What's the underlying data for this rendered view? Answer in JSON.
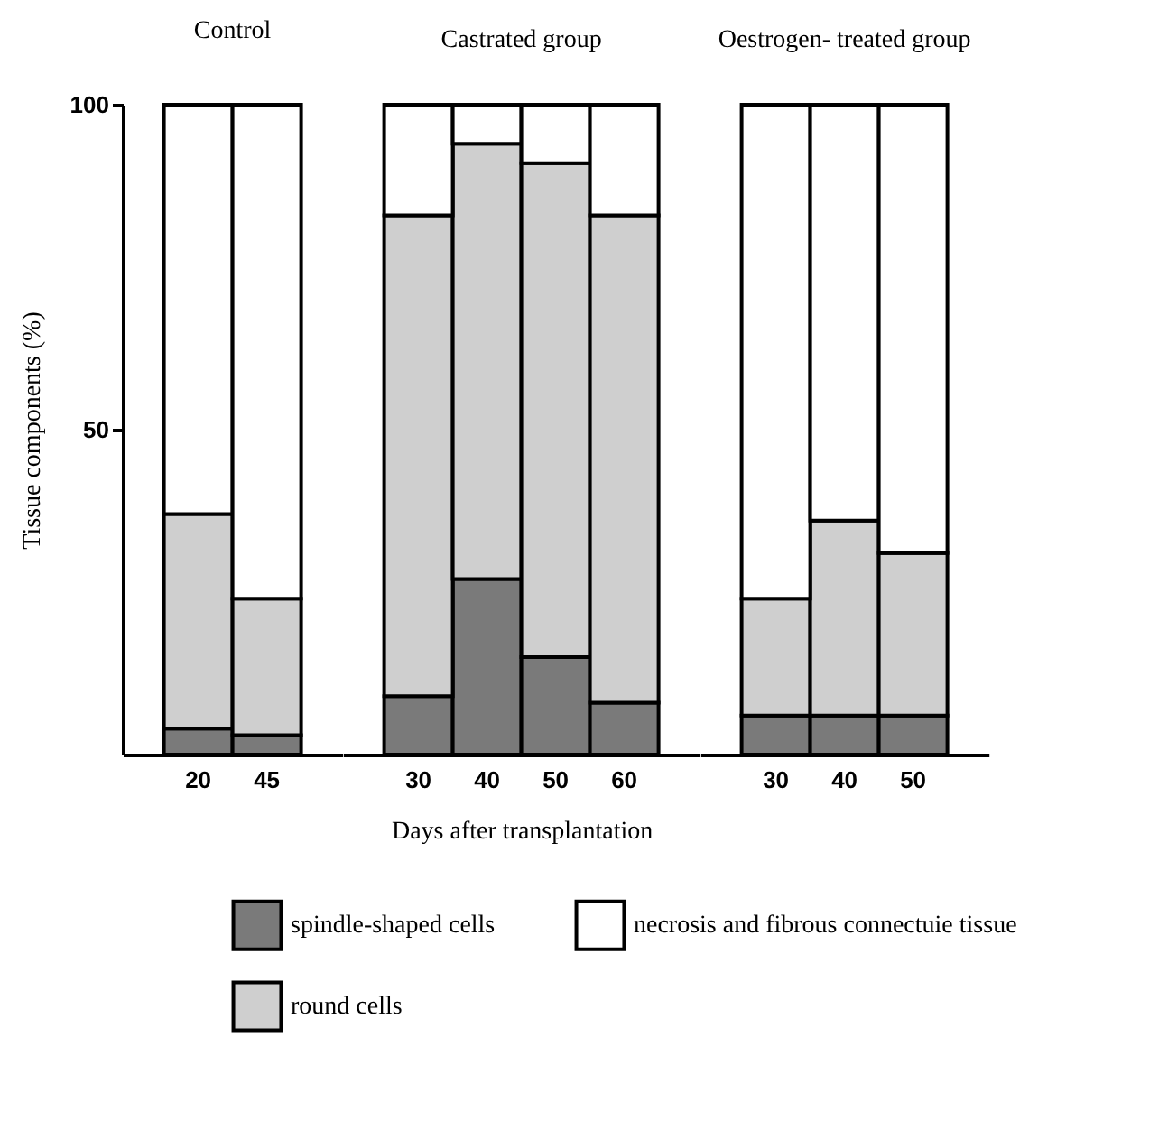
{
  "chart_data": [
    {
      "type": "bar",
      "title": "Control",
      "categories": [
        "20",
        "45"
      ],
      "stacked": true,
      "ylabel": "Tissue components (%)",
      "ylim": [
        0,
        100
      ],
      "yticks": [
        50,
        100
      ],
      "grid": false,
      "legend": "bottom",
      "series": [
        {
          "name": "spindle-shaped cells",
          "color": "#7a7a7a",
          "values": [
            4,
            3
          ]
        },
        {
          "name": "round cells",
          "color": "#cfcfcf",
          "values": [
            33,
            21
          ]
        },
        {
          "name": "necrosis and fibrous connectuie  tissue",
          "color": "#ffffff",
          "values": [
            63,
            76
          ]
        }
      ]
    },
    {
      "type": "bar",
      "title": "Castrated group",
      "categories": [
        "30",
        "40",
        "50",
        "60"
      ],
      "stacked": true,
      "xlabel": "Days after transplantation",
      "ylim": [
        0,
        100
      ],
      "tick_labels": "x",
      "grid": false,
      "series": [
        {
          "color": "#7a7a7a",
          "values": [
            9,
            27,
            15,
            8
          ]
        },
        {
          "color": "#cfcfcf",
          "values": [
            74,
            67,
            76,
            75
          ]
        },
        {
          "color": "#ffffff",
          "values": [
            17,
            6,
            9,
            17
          ]
        }
      ]
    },
    {
      "type": "bar",
      "title": "Oestrogen- treated group",
      "categories": [
        "30",
        "40",
        "50"
      ],
      "stacked": true,
      "ylim": [
        0,
        100
      ],
      "tick_labels": "x",
      "grid": false,
      "series": [
        {
          "color": "#7a7a7a",
          "values": [
            6,
            6,
            6
          ]
        },
        {
          "color": "#cfcfcf",
          "values": [
            18,
            30,
            25
          ]
        },
        {
          "color": "#ffffff",
          "values": [
            76,
            64,
            69
          ]
        }
      ]
    }
  ]
}
